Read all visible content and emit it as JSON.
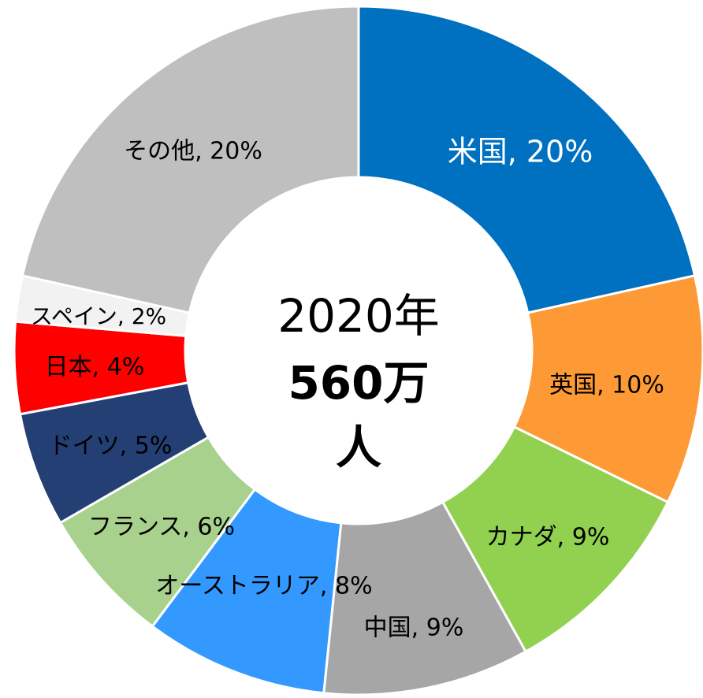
{
  "chart_data": {
    "type": "donut",
    "values": [
      20,
      10,
      9,
      9,
      8,
      6,
      5,
      4,
      2,
      20
    ],
    "value_labels": [
      "米国, 20%",
      "英国, 10%",
      "カナダ, 9%",
      "中国, 9%",
      "オーストラリア, 8%",
      "フランス, 6%",
      "ドイツ, 5%",
      "日本, 4%",
      "スペイン, 2%",
      "その他, 20%"
    ],
    "colors": [
      "#0070c0",
      "#fd9a35",
      "#92d050",
      "#a6a6a6",
      "#3399ff",
      "#a9d18e",
      "#243f74",
      "#ff0000",
      "#f2f2f2",
      "#bfbfbf"
    ],
    "label_colors": [
      "#ffffff",
      "#000000",
      "#000000",
      "#000000",
      "#000000",
      "#000000",
      "#000000",
      "#000000",
      "#000000",
      "#000000"
    ],
    "center_label": [
      "2020年",
      "560万",
      "人"
    ]
  }
}
